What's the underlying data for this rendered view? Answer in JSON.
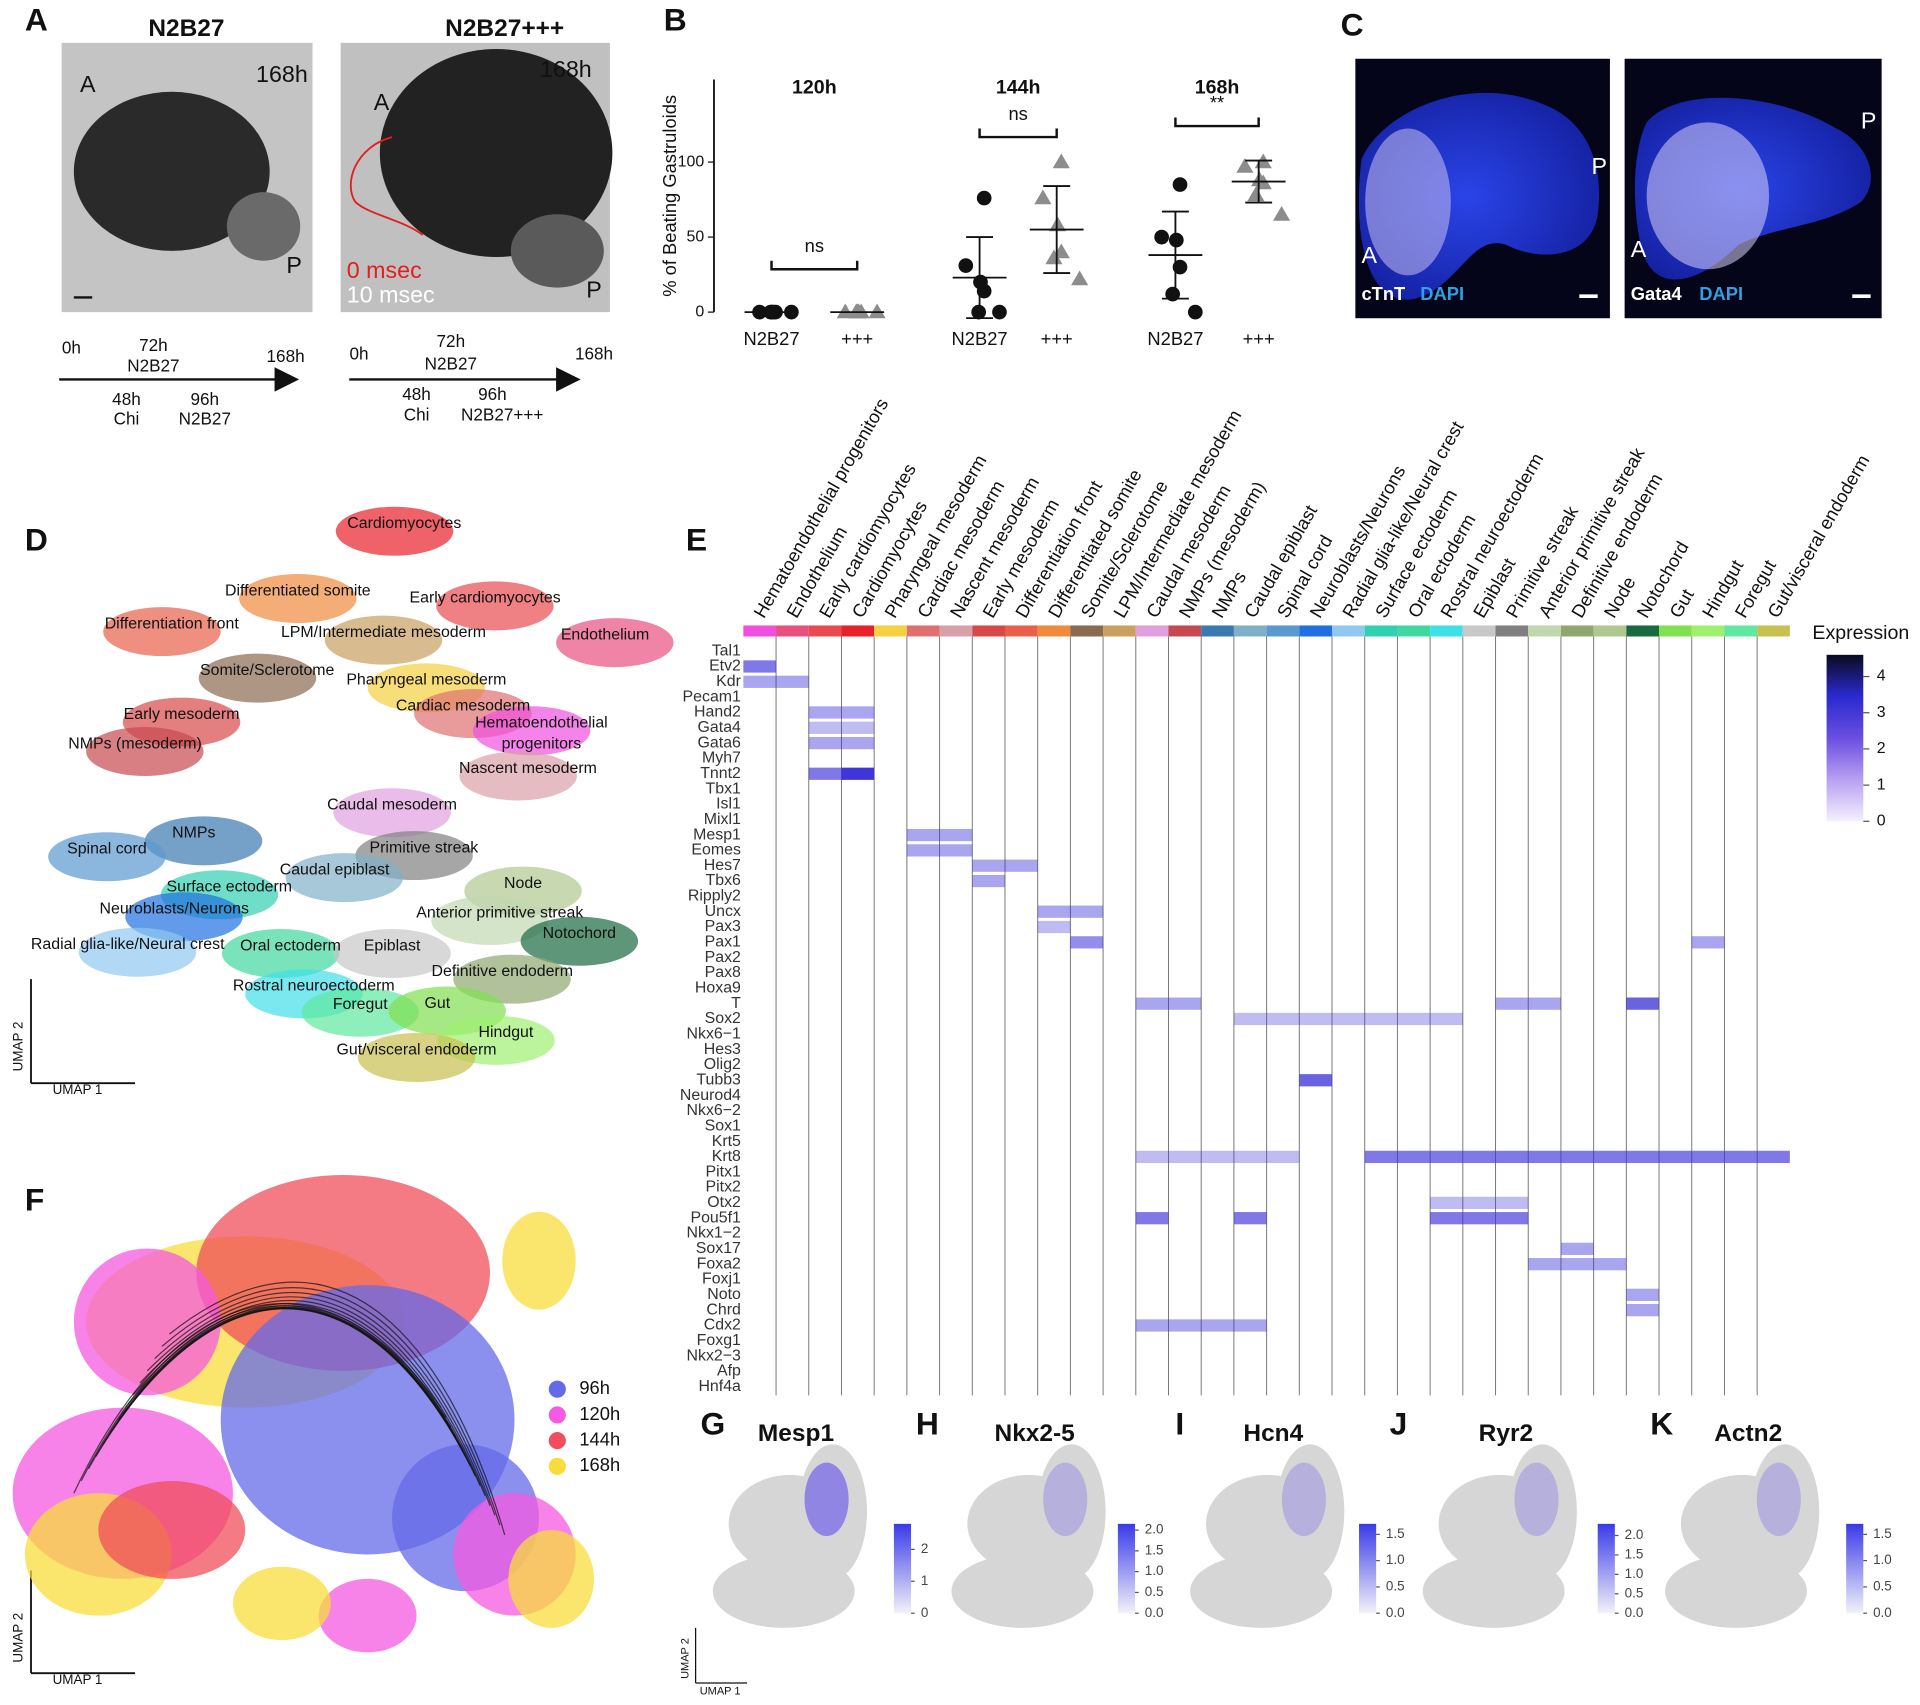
{
  "letters": [
    "A",
    "B",
    "C",
    "D",
    "E",
    "F",
    "G",
    "H",
    "I",
    "J",
    "K"
  ],
  "panel_a": {
    "images": [
      {
        "title": "N2B27",
        "time": "168h",
        "anterior": "A",
        "posterior": "P"
      },
      {
        "title": "N2B27+++",
        "time": "168h",
        "anterior": "A",
        "posterior": "P",
        "overlay": [
          "0 msec",
          "10 msec"
        ]
      }
    ],
    "timelines": [
      {
        "labels": [
          "0h",
          "72h",
          "N2B27",
          "168h",
          "48h",
          "Chi",
          "96h",
          "N2B27"
        ]
      },
      {
        "labels": [
          "0h",
          "72h",
          "N2B27",
          "168h",
          "48h",
          "Chi",
          "96h",
          "N2B27+++"
        ]
      }
    ]
  },
  "chart_data": {
    "type": "dot",
    "y_label": "% of Beating Gastruloids",
    "ylim": [
      0,
      155
    ],
    "yticks": [
      0,
      50,
      100
    ],
    "groups": [
      {
        "label": "120h",
        "significance": "ns",
        "conditions": [
          {
            "label": "N2B27",
            "color": "#111111",
            "marker": "circle",
            "values": [
              0,
              0,
              0,
              0,
              0,
              0
            ],
            "mean": 0,
            "sd": 0
          },
          {
            "label": "+++",
            "color": "#8c8c8c",
            "marker": "triangle",
            "values": [
              0,
              0,
              0,
              0,
              0,
              0
            ],
            "mean": 0,
            "sd": 0
          }
        ]
      },
      {
        "label": "144h",
        "significance": "ns",
        "conditions": [
          {
            "label": "N2B27",
            "color": "#111111",
            "marker": "circle",
            "values": [
              76,
              31,
              20,
              14,
              0,
              0
            ],
            "mean": 23,
            "sd": 27
          },
          {
            "label": "+++",
            "color": "#8c8c8c",
            "marker": "triangle",
            "values": [
              100,
              76,
              58,
              40,
              36,
              22
            ],
            "mean": 55,
            "sd": 29
          }
        ]
      },
      {
        "label": "168h",
        "significance": "**",
        "conditions": [
          {
            "label": "N2B27",
            "color": "#111111",
            "marker": "circle",
            "values": [
              85,
              50,
              48,
              30,
              12,
              0
            ],
            "mean": 38,
            "sd": 29
          },
          {
            "label": "+++",
            "color": "#8c8c8c",
            "marker": "triangle",
            "values": [
              100,
              97,
              88,
              86,
              78,
              65
            ],
            "mean": 87,
            "sd": 14
          }
        ]
      }
    ]
  },
  "panel_c": {
    "images": [
      {
        "stain": "cTnT",
        "counter": "DAPI",
        "anterior": "A",
        "posterior": "P"
      },
      {
        "stain": "Gata4",
        "counter": "DAPI",
        "anterior": "A",
        "posterior": "P"
      }
    ]
  },
  "panel_d": {
    "x_label": "UMAP 1",
    "y_label": "UMAP 2",
    "clusters": [
      {
        "lines": [
          "Cardiomyocytes"
        ],
        "color": "#e8202a"
      },
      {
        "lines": [
          "Differentiated somite"
        ],
        "color": "#f08a3c"
      },
      {
        "lines": [
          "Early cardiomyocytes"
        ],
        "color": "#e84a50"
      },
      {
        "lines": [
          "Differentiation front"
        ],
        "color": "#e8604a"
      },
      {
        "lines": [
          "LPM/Intermediate mesoderm"
        ],
        "color": "#c8a060"
      },
      {
        "lines": [
          "Endothelium"
        ],
        "color": "#e85080"
      },
      {
        "lines": [
          "Somite/Sclerotome"
        ],
        "color": "#8a6a50"
      },
      {
        "lines": [
          "Pharyngeal mesoderm"
        ],
        "color": "#f5d040"
      },
      {
        "lines": [
          "Cardiac mesoderm"
        ],
        "color": "#e07070"
      },
      {
        "lines": [
          "Hematoendothelial",
          "progenitors"
        ],
        "color": "#f050e0"
      },
      {
        "lines": [
          "Early mesoderm"
        ],
        "color": "#d84848"
      },
      {
        "lines": [
          "NMPs (mesoderm)"
        ],
        "color": "#c84850"
      },
      {
        "lines": [
          "Nascent mesoderm"
        ],
        "color": "#d8a0a8"
      },
      {
        "lines": [
          "Caudal mesoderm"
        ],
        "color": "#e0a0e0"
      },
      {
        "lines": [
          "NMPs"
        ],
        "color": "#3a78b0"
      },
      {
        "lines": [
          "Primitive streak"
        ],
        "color": "#808080"
      },
      {
        "lines": [
          "Spinal cord"
        ],
        "color": "#5a98d0"
      },
      {
        "lines": [
          "Caudal epiblast"
        ],
        "color": "#80b0c8"
      },
      {
        "lines": [
          "Surface ectoderm"
        ],
        "color": "#30d0b0"
      },
      {
        "lines": [
          "Node"
        ],
        "color": "#b0c890"
      },
      {
        "lines": [
          "Neuroblasts/Neurons"
        ],
        "color": "#1f70e0"
      },
      {
        "lines": [
          "Anterior primitive streak"
        ],
        "color": "#c0d8b0"
      },
      {
        "lines": [
          "Notochord"
        ],
        "color": "#1a6a40"
      },
      {
        "lines": [
          "Radial glia-like/Neural crest"
        ],
        "color": "#90c8f0"
      },
      {
        "lines": [
          "Oral ectoderm"
        ],
        "color": "#40d8a0"
      },
      {
        "lines": [
          "Epiblast"
        ],
        "color": "#c8c8c8"
      },
      {
        "lines": [
          "Definitive endoderm"
        ],
        "color": "#90a870"
      },
      {
        "lines": [
          "Rostral neuroectoderm"
        ],
        "color": "#40e0e8"
      },
      {
        "lines": [
          "Foregut"
        ],
        "color": "#60e8a0"
      },
      {
        "lines": [
          "Gut"
        ],
        "color": "#80e050"
      },
      {
        "lines": [
          "Hindgut"
        ],
        "color": "#a0f070"
      },
      {
        "lines": [
          "Gut/visceral endoderm"
        ],
        "color": "#c8c050"
      }
    ]
  },
  "panel_e": {
    "clusters": [
      {
        "name": "Hematoendothelial progenitors",
        "color": "#f050e0"
      },
      {
        "name": "Endothelium",
        "color": "#e85080"
      },
      {
        "name": "Early cardiomyocytes",
        "color": "#e84a50"
      },
      {
        "name": "Cardiomyocytes",
        "color": "#e8202a"
      },
      {
        "name": "Pharyngeal mesoderm",
        "color": "#f5d040"
      },
      {
        "name": "Cardiac mesoderm",
        "color": "#e07070"
      },
      {
        "name": "Nascent mesoderm",
        "color": "#d8a0a8"
      },
      {
        "name": "Early mesoderm",
        "color": "#d84848"
      },
      {
        "name": "Differentiation front",
        "color": "#e8604a"
      },
      {
        "name": "Differentiated somite",
        "color": "#f08a3c"
      },
      {
        "name": "Somite/Sclerotome",
        "color": "#8a6a50"
      },
      {
        "name": "LPM/Intermediate mesoderm",
        "color": "#c8a060"
      },
      {
        "name": "Caudal mesoderm",
        "color": "#e0a0e0"
      },
      {
        "name": "NMPs (mesoderm)",
        "color": "#c84850"
      },
      {
        "name": "NMPs",
        "color": "#3a78b0"
      },
      {
        "name": "Caudal epiblast",
        "color": "#80b0c8"
      },
      {
        "name": "Spinal cord",
        "color": "#5a98d0"
      },
      {
        "name": "Neuroblasts/Neurons",
        "color": "#1f70e0"
      },
      {
        "name": "Radial glia-like/Neural crest",
        "color": "#90c8f0"
      },
      {
        "name": "Surface ectoderm",
        "color": "#30d0b0"
      },
      {
        "name": "Oral ectoderm",
        "color": "#40d8a0"
      },
      {
        "name": "Rostral neuroectoderm",
        "color": "#40e0e8"
      },
      {
        "name": "Epiblast",
        "color": "#c8c8c8"
      },
      {
        "name": "Primitive streak",
        "color": "#808080"
      },
      {
        "name": "Anterior primitive streak",
        "color": "#c0d8b0"
      },
      {
        "name": "Definitive endoderm",
        "color": "#90a870"
      },
      {
        "name": "Node",
        "color": "#b0c890"
      },
      {
        "name": "Notochord",
        "color": "#1a6a40"
      },
      {
        "name": "Gut",
        "color": "#80e050"
      },
      {
        "name": "Hindgut",
        "color": "#a0f070"
      },
      {
        "name": "Foregut",
        "color": "#60e8a0"
      },
      {
        "name": "Gut/visceral endoderm",
        "color": "#c8c050"
      }
    ],
    "genes": [
      "Tal1",
      "Etv2",
      "Kdr",
      "Pecam1",
      "Hand2",
      "Gata4",
      "Gata6",
      "Myh7",
      "Tnnt2",
      "Tbx1",
      "Isl1",
      "Mixl1",
      "Mesp1",
      "Eomes",
      "Hes7",
      "Tbx6",
      "Ripply2",
      "Uncx",
      "Pax3",
      "Pax1",
      "Pax2",
      "Pax8",
      "Hoxa9",
      "T",
      "Sox2",
      "Nkx6−1",
      "Hes3",
      "Olig2",
      "Tubb3",
      "Neurod4",
      "Nkx6−2",
      "Sox1",
      "Krt5",
      "Krt8",
      "Pitx1",
      "Pitx2",
      "Otx2",
      "Pou5f1",
      "Nkx1−2",
      "Sox17",
      "Foxa2",
      "Foxj1",
      "Noto",
      "Chrd",
      "Cdx2",
      "Foxg1",
      "Nkx2−3",
      "Afp",
      "Hnf4a"
    ],
    "legend_title": "Expression",
    "legend_lim": [
      0,
      4.6
    ],
    "legend_ticks": [
      0,
      1,
      2,
      3,
      4
    ],
    "highlights": [
      [
        1,
        0,
        0,
        3
      ],
      [
        2,
        0,
        1,
        2
      ],
      [
        4,
        2,
        3,
        2
      ],
      [
        5,
        2,
        3,
        1.5
      ],
      [
        6,
        2,
        3,
        2
      ],
      [
        8,
        3,
        3,
        4.5
      ],
      [
        8,
        2,
        2,
        3
      ],
      [
        12,
        5,
        6,
        2
      ],
      [
        13,
        5,
        6,
        2
      ],
      [
        14,
        7,
        8,
        2
      ],
      [
        15,
        7,
        7,
        2
      ],
      [
        17,
        9,
        10,
        2
      ],
      [
        18,
        9,
        9,
        1.5
      ],
      [
        19,
        10,
        10,
        2.5
      ],
      [
        23,
        12,
        13,
        2
      ],
      [
        23,
        23,
        24,
        2
      ],
      [
        23,
        27,
        27,
        3.5
      ],
      [
        24,
        15,
        21,
        1.5
      ],
      [
        28,
        17,
        17,
        3.5
      ],
      [
        33,
        19,
        31,
        3
      ],
      [
        33,
        12,
        16,
        1.5
      ],
      [
        36,
        21,
        23,
        1.5
      ],
      [
        37,
        12,
        12,
        3
      ],
      [
        37,
        15,
        15,
        3
      ],
      [
        37,
        21,
        23,
        3
      ],
      [
        39,
        25,
        25,
        2
      ],
      [
        40,
        24,
        26,
        2
      ],
      [
        42,
        27,
        27,
        2
      ],
      [
        43,
        27,
        27,
        2
      ],
      [
        44,
        12,
        15,
        2
      ],
      [
        19,
        29,
        29,
        2
      ]
    ]
  },
  "panel_f": {
    "x_label": "UMAP 1",
    "y_label": "UMAP 2",
    "legend": [
      {
        "name": "96h",
        "color": "#6469e8"
      },
      {
        "name": "120h",
        "color": "#f55ae0"
      },
      {
        "name": "144h",
        "color": "#f04e5a"
      },
      {
        "name": "168h",
        "color": "#f8dc3c"
      }
    ]
  },
  "feature_plots": {
    "x_label": "UMAP 1",
    "y_label": "UMAP 2",
    "plots": [
      {
        "gene": "Mesp1",
        "lim": [
          0,
          2.8
        ],
        "ticks": [
          0,
          1,
          2
        ]
      },
      {
        "gene": "Nkx2-5",
        "lim": [
          0,
          2.15
        ],
        "ticks": [
          {
            "value": 0,
            "label": "0.0"
          },
          {
            "value": 0.5,
            "label": "0.5"
          },
          {
            "value": 1,
            "label": "1.0"
          },
          {
            "value": 1.5,
            "label": "1.5"
          },
          {
            "value": 2,
            "label": "2.0"
          }
        ]
      },
      {
        "gene": "Hcn4",
        "lim": [
          0,
          1.7
        ],
        "ticks": [
          {
            "value": 0,
            "label": "0.0"
          },
          {
            "value": 0.5,
            "label": "0.5"
          },
          {
            "value": 1,
            "label": "1.0"
          },
          {
            "value": 1.5,
            "label": "1.5"
          }
        ]
      },
      {
        "gene": "Ryr2",
        "lim": [
          0,
          2.3
        ],
        "ticks": [
          {
            "value": 0,
            "label": "0.0"
          },
          {
            "value": 0.5,
            "label": "0.5"
          },
          {
            "value": 1,
            "label": "1.0"
          },
          {
            "value": 1.5,
            "label": "1.5"
          },
          {
            "value": 2,
            "label": "2.0"
          }
        ]
      },
      {
        "gene": "Actn2",
        "lim": [
          0,
          1.7
        ],
        "ticks": [
          {
            "value": 0,
            "label": "0.0"
          },
          {
            "value": 0.5,
            "label": "0.5"
          },
          {
            "value": 1,
            "label": "1.0"
          },
          {
            "value": 1.5,
            "label": "1.5"
          }
        ]
      }
    ]
  }
}
